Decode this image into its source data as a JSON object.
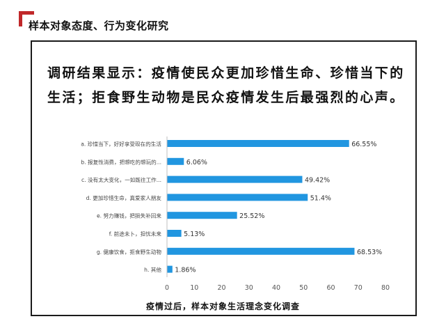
{
  "header": {
    "title": "样本对象态度、行为变化研究",
    "accent_color": "#c0282a"
  },
  "headline": {
    "line1": "调研结果显示：疫情使民众更加珍惜生命、珍惜当下的",
    "line2": "生活；拒食野生动物是民众疫情发生后最强烈的心声。"
  },
  "chart_data": {
    "type": "bar",
    "orientation": "horizontal",
    "title": "疫情过后，样本对象生活理念变化调查",
    "bar_color": "#2196e0",
    "categories": [
      "a. 珍惜当下，好好享受现在的生活",
      "b. 报复性消费，把想吃的想玩的...",
      "c. 没有太大变化，一如既往工作...",
      "d. 更加珍惜生命，真爱家人朋友",
      "e. 努力赚钱，把损失补回来",
      "f. 前途未卜，担忧未来",
      "g. 健康饮食，拒食野生动物",
      "h. 其他"
    ],
    "values": [
      66.55,
      6.06,
      49.42,
      51.4,
      25.52,
      5.13,
      68.53,
      1.86
    ],
    "value_labels": [
      "66.55%",
      "6.06%",
      "49.42%",
      "51.4%",
      "25.52%",
      "5.13%",
      "68.53%",
      "1.86%"
    ],
    "xlim": [
      0,
      80
    ],
    "xticks": [
      "0",
      "10",
      "20",
      "30",
      "40",
      "50",
      "60",
      "70",
      "80"
    ],
    "grid": false
  }
}
